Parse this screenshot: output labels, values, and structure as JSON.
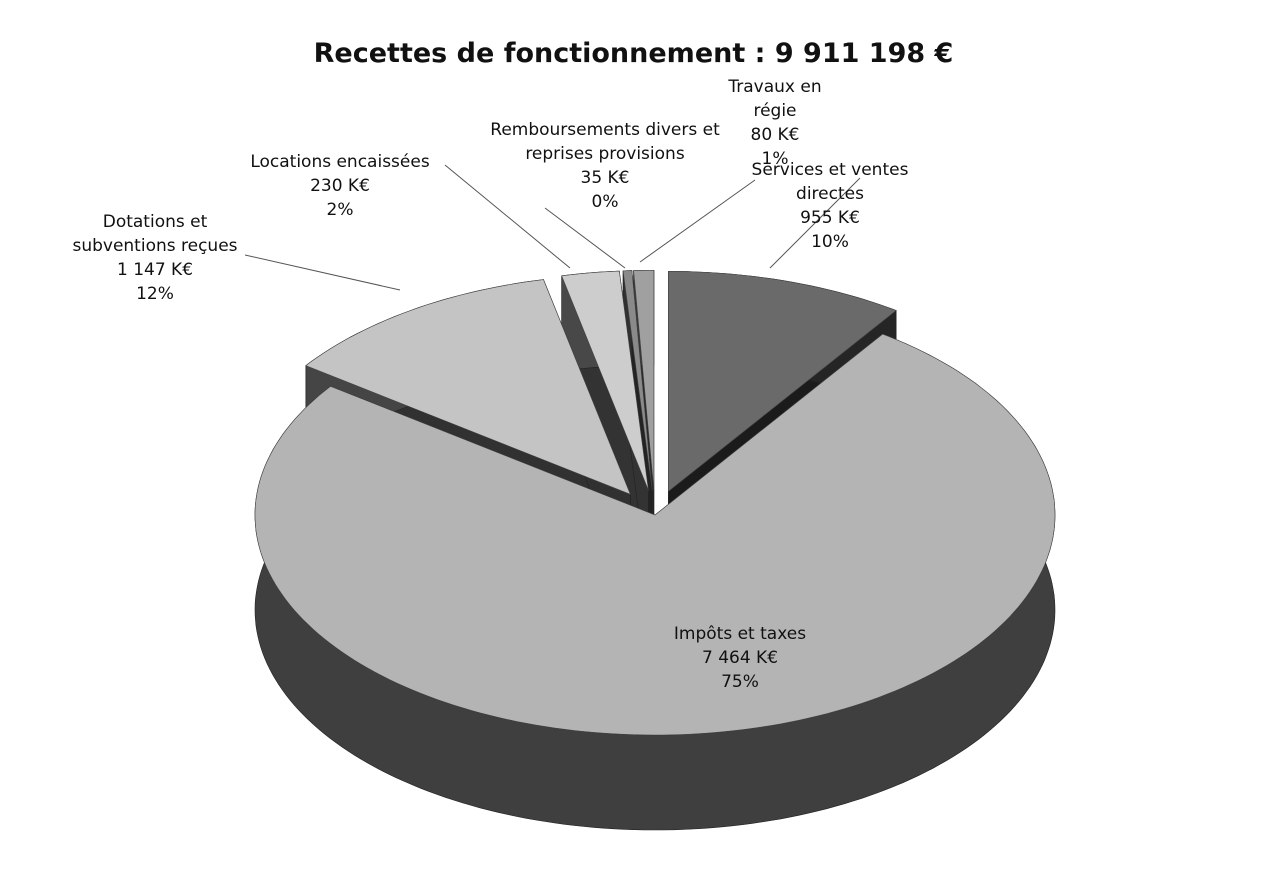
{
  "chart_data": {
    "type": "pie3d",
    "title": "Recettes de fonctionnement : 9 911 198 €",
    "categories": [
      "Services et ventes directes",
      "Impôts et taxes",
      "Dotations et subventions reçues",
      "Locations encaissées",
      "Remboursements divers et reprises provisions",
      "Travaux en régie"
    ],
    "values": [
      955,
      7464,
      1147,
      230,
      35,
      80
    ],
    "value_labels": [
      "955 K€",
      "7 464 K€",
      "1 147 K€",
      "230 K€",
      "35 K€",
      "80 K€"
    ],
    "percent_labels": [
      "10%",
      "75%",
      "12%",
      "2%",
      "0%",
      "1%"
    ],
    "colors": [
      "#6a6a6a",
      "#b4b4b4",
      "#c4c4c4",
      "#cdcdcd",
      "#8a8a8a",
      "#a0a0a0"
    ]
  }
}
